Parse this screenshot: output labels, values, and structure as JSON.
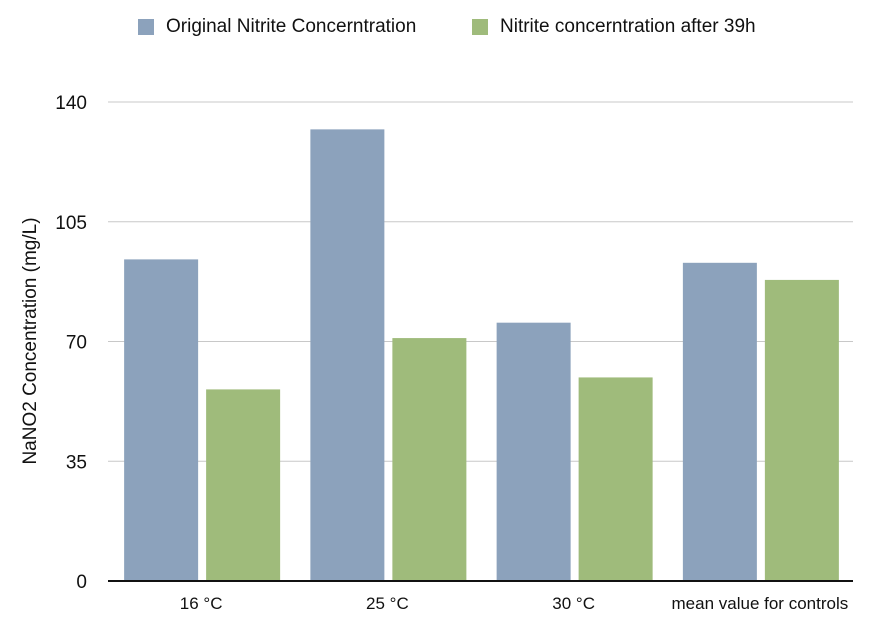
{
  "chart_data": {
    "type": "bar",
    "title": "",
    "xlabel": "",
    "ylabel": "NaNO2 Concentration (mg/L)",
    "categories": [
      "16 °C",
      "25 °C",
      "30 °C",
      "mean value for controls"
    ],
    "series": [
      {
        "name": "Original Nitrite Concerntration",
        "color": "#8ca2bc",
        "values": [
          94,
          132,
          75.5,
          93
        ]
      },
      {
        "name": "Nitrite concerntration after 39h",
        "color": "#9fbb7b",
        "values": [
          56,
          71,
          59.5,
          88
        ]
      }
    ],
    "ylim": [
      0,
      140
    ],
    "yticks": [
      "0",
      "35",
      "70",
      "105",
      "140"
    ],
    "grid": true,
    "legend_position": "top"
  }
}
